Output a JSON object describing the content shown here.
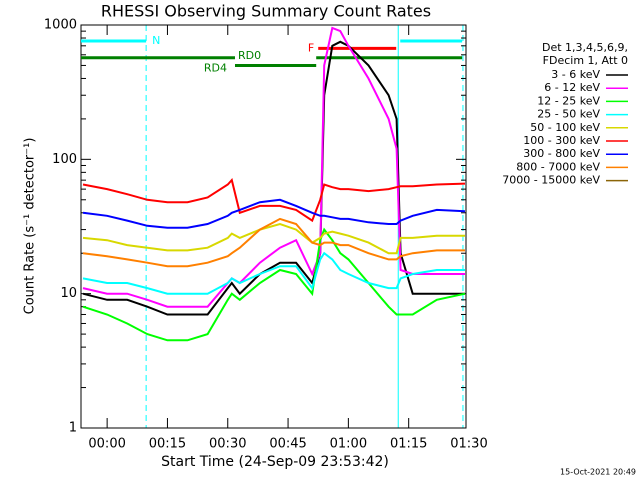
{
  "chart_data": {
    "type": "line",
    "title": "RHESSI Observing Summary Count Rates",
    "x_label": "Start Time (24-Sep-09 23:53:42)",
    "y_label": "Count Rate (s⁻¹ detector⁻¹)",
    "footer": "15-Oct-2021 20:49",
    "legend_title": [
      "Det 1,3,4,5,6,9,",
      "FDecim 1, Att 0"
    ],
    "log_y": true,
    "xlim": [
      -6.5,
      90.5
    ],
    "ylim": [
      1,
      1000
    ],
    "xticks": [
      {
        "value": 0,
        "label": "00:00"
      },
      {
        "value": 15,
        "label": "00:15"
      },
      {
        "value": 30,
        "label": "00:30"
      },
      {
        "value": 45,
        "label": "00:45"
      },
      {
        "value": 60,
        "label": "01:00"
      },
      {
        "value": 75,
        "label": "01:15"
      },
      {
        "value": 90,
        "label": "01:30"
      }
    ],
    "yticks": [
      1,
      10,
      100,
      1000
    ],
    "yminorticks": [
      2,
      3,
      4,
      5,
      6,
      7,
      8,
      9,
      20,
      30,
      40,
      50,
      60,
      70,
      80,
      90,
      200,
      300,
      400,
      500,
      600,
      700,
      800,
      900
    ],
    "x": [
      -6,
      0,
      5,
      10,
      15,
      20,
      25,
      30,
      31,
      33,
      38,
      43,
      47,
      51,
      53,
      54,
      56,
      58,
      60,
      65,
      70,
      72,
      73,
      76,
      82,
      89
    ],
    "series": [
      {
        "name": "3 - 6 keV",
        "color": "#000000",
        "values": [
          10,
          9,
          9,
          8,
          7,
          7,
          7,
          11,
          12,
          10,
          14,
          17,
          17,
          12,
          20,
          300,
          700,
          750,
          700,
          500,
          300,
          200,
          20,
          10,
          10,
          10
        ]
      },
      {
        "name": "6 - 12 keV",
        "color": "#ff00ff",
        "values": [
          11,
          10,
          10,
          9,
          8,
          8,
          8,
          12,
          13,
          12,
          17,
          22,
          25,
          14,
          20,
          500,
          950,
          900,
          700,
          400,
          200,
          120,
          15,
          14,
          14,
          14
        ]
      },
      {
        "name": "12 - 25 keV",
        "color": "#00ff00",
        "values": [
          8,
          7,
          6,
          5,
          4.5,
          4.5,
          5,
          9,
          10,
          9,
          12,
          15,
          14,
          10,
          25,
          30,
          25,
          20,
          18,
          12,
          8,
          7,
          7,
          7,
          9,
          10
        ]
      },
      {
        "name": "25 - 50 keV",
        "color": "#00ffff",
        "values": [
          13,
          12,
          12,
          11,
          10,
          10,
          10,
          12,
          13,
          12,
          14,
          16,
          16,
          11,
          18,
          20,
          18,
          15,
          14,
          12,
          11,
          11,
          13,
          14,
          15,
          15
        ]
      },
      {
        "name": "50 - 100 keV",
        "color": "#d8d800",
        "values": [
          26,
          25,
          23,
          22,
          21,
          21,
          22,
          26,
          28,
          26,
          30,
          33,
          30,
          24,
          26,
          28,
          29,
          28,
          27,
          24,
          20,
          20,
          26,
          26,
          27,
          27
        ]
      },
      {
        "name": "100 - 300 keV",
        "color": "#ff0000",
        "values": [
          65,
          60,
          55,
          50,
          48,
          48,
          52,
          65,
          70,
          40,
          45,
          45,
          42,
          35,
          50,
          65,
          62,
          60,
          60,
          58,
          60,
          62,
          63,
          63,
          65,
          66
        ]
      },
      {
        "name": "300 - 800 keV",
        "color": "#0000ff",
        "values": [
          40,
          38,
          35,
          32,
          31,
          31,
          33,
          38,
          40,
          42,
          48,
          50,
          45,
          40,
          38,
          38,
          37,
          36,
          36,
          34,
          33,
          33,
          35,
          38,
          42,
          41
        ]
      },
      {
        "name": "800 - 7000 keV",
        "color": "#ff8000",
        "values": [
          20,
          19,
          18,
          17,
          16,
          16,
          17,
          19,
          20,
          22,
          30,
          36,
          33,
          24,
          23,
          24,
          24,
          23,
          23,
          20,
          18,
          18,
          19,
          20,
          21,
          21
        ]
      },
      {
        "name": "7000 - 15000 keV",
        "color": "#8b6508",
        "values": [
          null,
          null,
          null,
          null,
          null,
          null,
          null,
          null,
          null,
          null,
          null,
          null,
          null,
          null,
          null,
          null,
          null,
          null,
          null,
          null,
          null,
          null,
          null,
          null,
          null,
          null
        ]
      }
    ],
    "flags": [
      {
        "label": "N",
        "color": "#00ffff",
        "level": 760,
        "segments": [
          [
            -6.5,
            9.7
          ],
          [
            72.9,
            88.3
          ]
        ]
      },
      {
        "label": "F",
        "color": "#ff0000",
        "level": 670,
        "segments": [
          [
            52.5,
            71.9
          ]
        ]
      },
      {
        "label": "RD0",
        "color": "#008000",
        "level": 570,
        "segments": [
          [
            -6.5,
            31.8
          ],
          [
            52,
            88.3
          ]
        ]
      },
      {
        "label": "RD4",
        "color": "#008000",
        "level": 500,
        "segments": [
          [
            31.8,
            52
          ]
        ]
      }
    ],
    "vlines": [
      {
        "x": -6.5,
        "dashed": false,
        "color": "#00ffff"
      },
      {
        "x": 9.7,
        "dashed": true,
        "color": "#00ffff"
      },
      {
        "x": 72.4,
        "dashed": false,
        "color": "#00ffff"
      },
      {
        "x": 88.5,
        "dashed": true,
        "color": "#00ffff"
      }
    ]
  }
}
